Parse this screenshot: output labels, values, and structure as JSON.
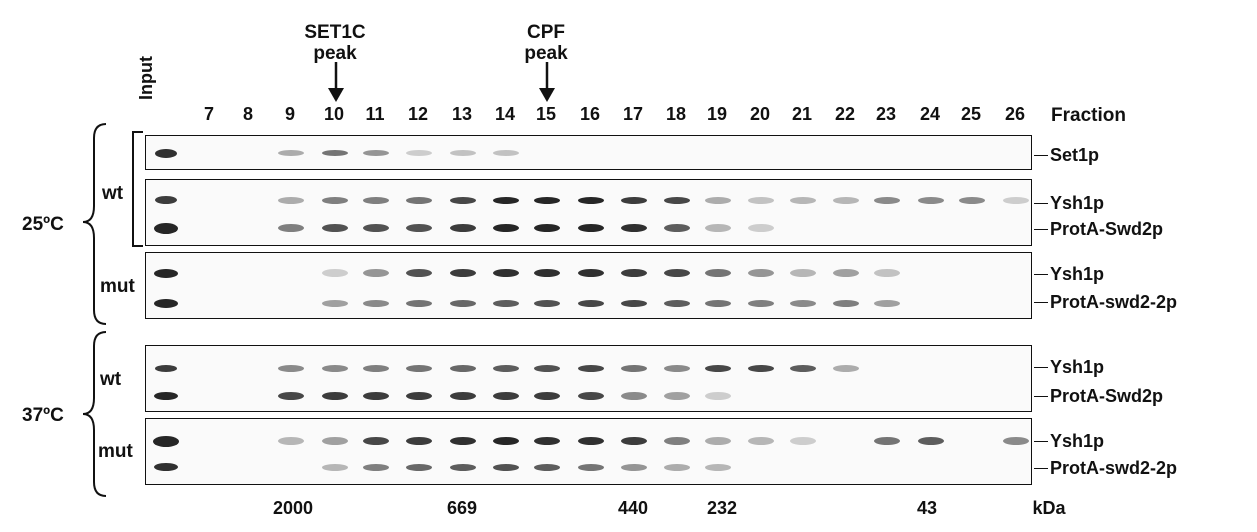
{
  "header": {
    "input_label": "Input",
    "fraction_label": "Fraction",
    "fractions": [
      "7",
      "8",
      "9",
      "10",
      "11",
      "12",
      "13",
      "14",
      "15",
      "16",
      "17",
      "18",
      "19",
      "20",
      "21",
      "22",
      "23",
      "24",
      "25",
      "26"
    ]
  },
  "peaks": {
    "set1c_line1": "SET1C",
    "set1c_line2": "peak",
    "cpf_line1": "CPF",
    "cpf_line2": "peak"
  },
  "conditions": {
    "temp_25": "25ºC",
    "temp_37": "37ºC",
    "wt_25": "wt",
    "mut_25": "mut",
    "wt_37": "wt",
    "mut_37": "mut"
  },
  "labels": {
    "set1p": "Set1p",
    "ysh1p_a": "Ysh1p",
    "protA_swd2p_a": "ProtA-Swd2p",
    "ysh1p_b": "Ysh1p",
    "protA_swd2_2p_a": "ProtA-swd2-2p",
    "ysh1p_c": "Ysh1p",
    "protA_swd2p_b": "ProtA-Swd2p",
    "ysh1p_d": "Ysh1p",
    "protA_swd2_2p_b": "ProtA-swd2-2p"
  },
  "markers": {
    "m2000": "2000",
    "m669": "669",
    "m440": "440",
    "m232": "232",
    "m43": "43",
    "unit": "kDa"
  },
  "colors": {
    "band": "#1a1a1a",
    "background": "#ffffff"
  }
}
